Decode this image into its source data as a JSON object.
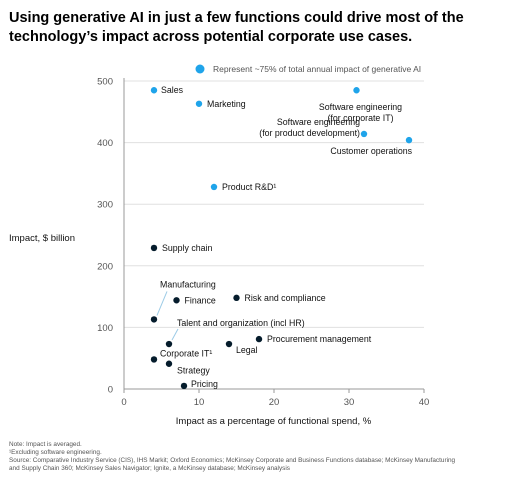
{
  "title": "Using generative AI in just a few functions could drive most of the technology’s impact across potential corporate use cases.",
  "notes": [
    "Note: Impact is averaged.",
    "¹Excluding software engineering.",
    "Source: Comparative Industry Service (CIS), IHS Markit; Oxford Economics; McKinsey Corporate and Business Functions database; McKinsey Manufacturing",
    "and Supply Chain 360; McKinsey Sales Navigator; Ignite, a McKinsey database; McKinsey analysis"
  ],
  "colors": {
    "highlight": "#1fa4ea",
    "other": "#051c2c",
    "axis": "#999999",
    "grid": "#e0e0e0"
  },
  "chart_data": {
    "type": "scatter",
    "xlabel": "Impact as a percentage of functional spend, %",
    "ylabel": "Impact, $ billion",
    "xlim": [
      0,
      40
    ],
    "ylim": [
      0,
      500
    ],
    "xticks": [
      "0",
      "10",
      "20",
      "30",
      "40"
    ],
    "yticks": [
      "0",
      "100",
      "200",
      "300",
      "400",
      "500"
    ],
    "grid": "horizontal",
    "legend": {
      "label": "Represent ~75% of total annual impact of generative AI",
      "placement": "top"
    },
    "points": [
      {
        "label": "Sales",
        "x": 4,
        "y": 485,
        "highlight": true
      },
      {
        "label": "Marketing",
        "x": 10,
        "y": 463,
        "highlight": true
      },
      {
        "label": "Software engineering (for corporate IT)",
        "x": 31,
        "y": 485,
        "highlight": true
      },
      {
        "label": "Software engineering (for product development)",
        "x": 32,
        "y": 414,
        "highlight": true
      },
      {
        "label": "Customer operations",
        "x": 38,
        "y": 404,
        "highlight": true
      },
      {
        "label": "Product R&D¹",
        "x": 12,
        "y": 328,
        "highlight": true
      },
      {
        "label": "Supply chain",
        "x": 4,
        "y": 229,
        "highlight": false
      },
      {
        "label": "Manufacturing",
        "x": 4,
        "y": 113,
        "highlight": false
      },
      {
        "label": "Finance",
        "x": 7,
        "y": 144,
        "highlight": false
      },
      {
        "label": "Risk and compliance",
        "x": 15,
        "y": 148,
        "highlight": false
      },
      {
        "label": "Talent and organization (incl HR)",
        "x": 6,
        "y": 73,
        "highlight": false
      },
      {
        "label": "Procurement management",
        "x": 18,
        "y": 81,
        "highlight": false
      },
      {
        "label": "Legal",
        "x": 14,
        "y": 73,
        "highlight": false
      },
      {
        "label": "Corporate IT¹",
        "x": 4,
        "y": 48,
        "highlight": false
      },
      {
        "label": "Strategy",
        "x": 6,
        "y": 41,
        "highlight": false
      },
      {
        "label": "Pricing",
        "x": 8,
        "y": 5,
        "highlight": false
      }
    ]
  }
}
